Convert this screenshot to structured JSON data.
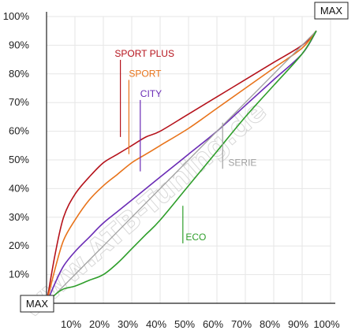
{
  "chart_data": {
    "type": "line",
    "xlim": [
      0,
      100
    ],
    "ylim": [
      0,
      100
    ],
    "x_tick_labels": [
      "10%",
      "20%",
      "30%",
      "40%",
      "50%",
      "60%",
      "70%",
      "80%",
      "90%",
      "100%"
    ],
    "y_tick_labels": [
      "10%",
      "20%",
      "30%",
      "40%",
      "50%",
      "60%",
      "70%",
      "80%",
      "90%",
      "100%"
    ],
    "origin_label": "MAX",
    "end_label": "MAX",
    "watermark": "www.ATB-Tuning.de",
    "series": [
      {
        "name": "SPORT PLUS",
        "color": "#b5121b",
        "x": [
          0,
          3,
          6,
          10,
          15,
          20,
          25,
          30,
          35,
          40,
          50,
          60,
          70,
          80,
          90,
          95
        ],
        "y": [
          0,
          17,
          30,
          38,
          44,
          49,
          52,
          55,
          58,
          60,
          66,
          72,
          78,
          84,
          90,
          95
        ]
      },
      {
        "name": "SPORT",
        "color": "#e8731a",
        "x": [
          0,
          3,
          6,
          10,
          15,
          20,
          25,
          30,
          35,
          40,
          50,
          60,
          70,
          80,
          90,
          95
        ],
        "y": [
          0,
          12,
          22,
          29,
          36,
          41,
          45,
          49,
          52,
          55,
          61,
          68,
          75,
          82,
          89,
          95
        ]
      },
      {
        "name": "CITY",
        "color": "#6a2bb5",
        "x": [
          0,
          3,
          6,
          10,
          15,
          20,
          25,
          30,
          35,
          40,
          50,
          60,
          70,
          80,
          90,
          95
        ],
        "y": [
          0,
          7,
          13,
          18,
          23,
          28,
          32,
          36,
          40,
          44,
          52,
          60,
          69,
          78,
          87,
          95
        ]
      },
      {
        "name": "SERIE",
        "color": "#a0a0a0",
        "x": [
          0,
          95
        ],
        "y": [
          0,
          95
        ]
      },
      {
        "name": "ECO",
        "color": "#2e9e2a",
        "x": [
          0,
          3,
          6,
          10,
          15,
          20,
          25,
          30,
          35,
          40,
          50,
          60,
          70,
          80,
          90,
          95
        ],
        "y": [
          0,
          3,
          5,
          6,
          8,
          10,
          14,
          19,
          24,
          29,
          41,
          53,
          65,
          76,
          87,
          95
        ]
      }
    ],
    "label_anchors": [
      {
        "series": "SPORT PLUS",
        "at": [
          26,
          58
        ],
        "text": [
          24,
          86
        ]
      },
      {
        "series": "SPORT",
        "at": [
          29,
          52
        ],
        "text": [
          29,
          79
        ]
      },
      {
        "series": "CITY",
        "at": [
          33,
          46
        ],
        "text": [
          33,
          72
        ]
      },
      {
        "series": "SERIE",
        "at": [
          62,
          63
        ],
        "text": [
          64,
          48
        ]
      },
      {
        "series": "ECO",
        "at": [
          48,
          34
        ],
        "text": [
          49,
          22
        ]
      }
    ]
  }
}
